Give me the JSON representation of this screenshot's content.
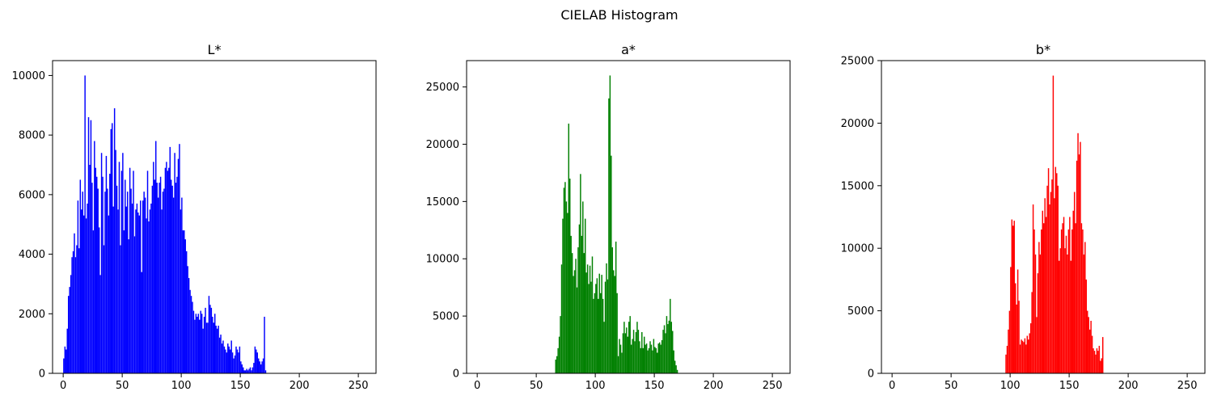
{
  "figure": {
    "title": "CIELAB Histogram"
  },
  "chart_data": [
    {
      "type": "bar",
      "title": "L*",
      "color": "#0000ff",
      "xlabel": "",
      "ylabel": "",
      "xlim": [
        -9,
        265
      ],
      "ylim": [
        0,
        10500
      ],
      "xticks": [
        0,
        50,
        100,
        150,
        200,
        250
      ],
      "yticks": [
        0,
        2000,
        4000,
        6000,
        8000,
        10000
      ],
      "x_start": 0,
      "values": [
        500,
        900,
        800,
        1500,
        2600,
        2900,
        3300,
        3900,
        4100,
        4700,
        3900,
        4300,
        5800,
        4200,
        6500,
        5500,
        6100,
        5300,
        10000,
        5200,
        5700,
        8600,
        7000,
        8500,
        6400,
        4800,
        7800,
        6900,
        6600,
        6200,
        4900,
        3300,
        7400,
        6600,
        4300,
        6100,
        7300,
        6200,
        5300,
        6700,
        8200,
        8400,
        5600,
        8900,
        7500,
        6300,
        5500,
        7100,
        4300,
        6800,
        7400,
        4800,
        6500,
        5600,
        6100,
        4500,
        6900,
        6200,
        5700,
        6800,
        4600,
        5500,
        5700,
        5400,
        5300,
        5800,
        3400,
        5800,
        6100,
        5900,
        5200,
        6800,
        5100,
        5500,
        5700,
        6300,
        7100,
        6500,
        7800,
        6400,
        5900,
        6400,
        6600,
        5500,
        6100,
        6200,
        6900,
        7100,
        6800,
        6900,
        7600,
        6500,
        6300,
        5900,
        7400,
        6400,
        6600,
        7200,
        7700,
        5500,
        5900,
        4800,
        4800,
        4500,
        4100,
        3600,
        3200,
        2800,
        2600,
        2400,
        2100,
        1800,
        2000,
        1900,
        2000,
        1800,
        2100,
        2000,
        1500,
        1900,
        2200,
        1700,
        1700,
        2600,
        2300,
        2200,
        1900,
        1700,
        2000,
        1600,
        1500,
        1600,
        1200,
        1300,
        1000,
        1100,
        900,
        800,
        700,
        1000,
        900,
        800,
        1100,
        700,
        500,
        600,
        900,
        800,
        700,
        900,
        400,
        300,
        200,
        100,
        100,
        150,
        100,
        150,
        200,
        100,
        200,
        350,
        900,
        800,
        700,
        500,
        400,
        300,
        400,
        500,
        1900,
        100,
        0,
        0,
        0,
        0,
        0,
        0,
        0,
        0,
        0,
        0,
        0,
        0,
        0,
        0,
        0,
        0,
        0,
        0,
        0,
        0,
        0,
        0,
        0,
        0,
        0,
        0,
        0,
        0,
        0,
        0,
        0,
        0,
        0,
        0,
        0,
        0,
        0,
        0,
        0,
        0,
        0,
        0,
        0,
        0,
        0,
        0,
        0,
        0,
        0,
        0,
        0,
        0,
        0,
        0,
        0,
        0,
        0,
        0,
        0,
        0,
        0,
        0,
        0,
        0,
        0,
        0,
        0,
        0,
        0,
        0,
        0,
        0,
        0,
        0,
        0,
        0,
        0,
        0,
        0,
        0,
        0,
        0,
        0,
        0,
        0,
        0,
        0,
        0,
        0,
        0,
        0,
        0,
        0,
        0,
        0,
        0,
        0,
        0,
        0,
        0,
        0
      ]
    },
    {
      "type": "bar",
      "title": "a*",
      "color": "#008000",
      "xlabel": "",
      "ylabel": "",
      "xlim": [
        -9,
        265
      ],
      "ylim": [
        0,
        27300
      ],
      "xticks": [
        0,
        50,
        100,
        150,
        200,
        250
      ],
      "yticks": [
        0,
        5000,
        10000,
        15000,
        20000,
        25000
      ],
      "x_start": 66,
      "values": [
        1200,
        1500,
        2200,
        3200,
        5000,
        9500,
        13500,
        16200,
        16700,
        15000,
        14000,
        21800,
        17000,
        12000,
        10500,
        8500,
        9000,
        10000,
        7500,
        11000,
        13000,
        17400,
        12000,
        15000,
        10500,
        13500,
        8800,
        9500,
        7800,
        9400,
        8000,
        10200,
        6500,
        7000,
        7800,
        8300,
        6500,
        8700,
        7000,
        8600,
        6500,
        4500,
        8000,
        9600,
        8200,
        24000,
        26000,
        19000,
        11000,
        9000,
        8500,
        11500,
        7000,
        1500,
        3000,
        2500,
        1800,
        3500,
        4500,
        3500,
        4000,
        3200,
        4500,
        5000,
        2500,
        3000,
        3800,
        2800,
        3600,
        4500,
        3800,
        2800,
        2200,
        3600,
        2200,
        3200,
        2500,
        2600,
        2000,
        2200,
        2800,
        2500,
        2000,
        3000,
        2300,
        2200,
        1800,
        2600,
        2700,
        2500,
        2900,
        3800,
        4200,
        3500,
        5000,
        4300,
        4600,
        6500,
        4500,
        3700,
        2000,
        1100,
        700,
        300
      ]
    },
    {
      "type": "bar",
      "title": "b*",
      "color": "#ff0000",
      "xlabel": "",
      "ylabel": "",
      "xlim": [
        -9,
        265
      ],
      "ylim": [
        0,
        25000
      ],
      "xticks": [
        0,
        50,
        100,
        150,
        200,
        250
      ],
      "yticks": [
        0,
        5000,
        10000,
        15000,
        20000,
        25000
      ],
      "x_start": 96,
      "values": [
        1500,
        2200,
        3500,
        5000,
        8500,
        12300,
        11800,
        12200,
        7200,
        5500,
        8300,
        5800,
        2300,
        2700,
        2600,
        2500,
        2800,
        2300,
        3000,
        2700,
        3200,
        4000,
        6500,
        13500,
        11500,
        9500,
        4500,
        8000,
        10500,
        9500,
        11500,
        13000,
        12000,
        14000,
        12500,
        15000,
        16400,
        13500,
        14500,
        15500,
        23800,
        14000,
        16500,
        16000,
        15000,
        9000,
        10000,
        11500,
        12000,
        12500,
        10000,
        11000,
        9500,
        11500,
        12500,
        9000,
        11500,
        13000,
        14500,
        12000,
        17000,
        19200,
        17500,
        18500,
        12000,
        11500,
        9500,
        10500,
        7500,
        5000,
        4500,
        3500,
        4200,
        3000,
        2000,
        1800,
        1500,
        2000,
        1800,
        2200,
        1000,
        1200,
        2900
      ]
    }
  ]
}
